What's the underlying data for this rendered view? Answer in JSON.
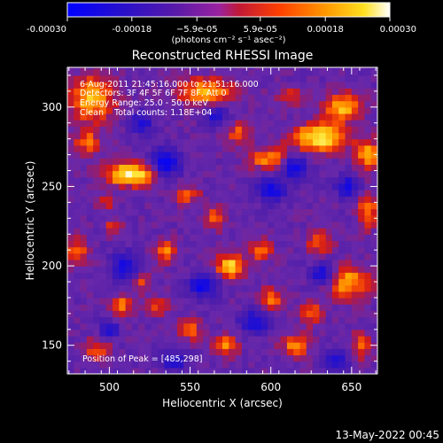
{
  "chart_data": {
    "type": "heatmap",
    "title": "Reconstructed RHESSI Image",
    "xlabel": "Heliocentric X (arcsec)",
    "ylabel": "Heliocentric Y (arcsec)",
    "xlim": [
      474,
      666
    ],
    "ylim": [
      132,
      325
    ],
    "xticks": [
      500,
      550,
      600,
      650
    ],
    "yticks": [
      150,
      200,
      250,
      300
    ],
    "colorbar": {
      "range": [
        -0.0003,
        0.0003
      ],
      "tick_values": [
        -0.0003,
        -0.00018,
        -5.9e-05,
        5.9e-05,
        0.00018,
        0.0003
      ],
      "tick_labels": [
        "-0.00030",
        "-0.00018",
        "−5.9e-05",
        "5.9e-05",
        "0.00018",
        "0.00030"
      ],
      "units_label": "(photons cm⁻² s⁻¹ asec⁻²)",
      "colormap": [
        "#0000ff",
        "#5a1aa8",
        "#7a2ab0",
        "#d01818",
        "#ff7000",
        "#ffc800",
        "#ffffff"
      ]
    },
    "annotations": [
      "6-Aug-2011 21:45:16.000 to 21:51:16.000",
      "Detectors: 3F 4F 5F 6F 7F 8F, Att 0",
      "Energy Range: 25.0 - 50.0 keV",
      "Clean    Total counts: 1.18E+04"
    ],
    "peak_label": "Position of Peak = [485,298]",
    "hotspots": [
      {
        "x": 513,
        "y": 258,
        "sx": 11,
        "sy": 5,
        "a": 1.0
      },
      {
        "x": 489,
        "y": 306,
        "sx": 10,
        "sy": 10,
        "a": 0.75
      },
      {
        "x": 486,
        "y": 278,
        "sx": 6,
        "sy": 6,
        "a": 0.5
      },
      {
        "x": 560,
        "y": 310,
        "sx": 12,
        "sy": 6,
        "a": 0.7
      },
      {
        "x": 548,
        "y": 245,
        "sx": 6,
        "sy": 4,
        "a": 0.45
      },
      {
        "x": 598,
        "y": 268,
        "sx": 8,
        "sy": 5,
        "a": 0.6
      },
      {
        "x": 630,
        "y": 281,
        "sx": 12,
        "sy": 6,
        "a": 0.95
      },
      {
        "x": 645,
        "y": 300,
        "sx": 8,
        "sy": 6,
        "a": 0.8
      },
      {
        "x": 660,
        "y": 270,
        "sx": 5,
        "sy": 7,
        "a": 0.7
      },
      {
        "x": 575,
        "y": 200,
        "sx": 6,
        "sy": 5,
        "a": 0.9
      },
      {
        "x": 535,
        "y": 210,
        "sx": 5,
        "sy": 5,
        "a": 0.55
      },
      {
        "x": 520,
        "y": 190,
        "sx": 5,
        "sy": 5,
        "a": 0.4
      },
      {
        "x": 508,
        "y": 175,
        "sx": 5,
        "sy": 5,
        "a": 0.55
      },
      {
        "x": 530,
        "y": 175,
        "sx": 5,
        "sy": 4,
        "a": 0.4
      },
      {
        "x": 594,
        "y": 210,
        "sx": 5,
        "sy": 5,
        "a": 0.5
      },
      {
        "x": 648,
        "y": 190,
        "sx": 10,
        "sy": 7,
        "a": 0.7
      },
      {
        "x": 630,
        "y": 215,
        "sx": 6,
        "sy": 5,
        "a": 0.5
      },
      {
        "x": 625,
        "y": 170,
        "sx": 5,
        "sy": 5,
        "a": 0.5
      },
      {
        "x": 600,
        "y": 180,
        "sx": 5,
        "sy": 5,
        "a": 0.55
      },
      {
        "x": 615,
        "y": 150,
        "sx": 6,
        "sy": 5,
        "a": 0.6
      },
      {
        "x": 572,
        "y": 150,
        "sx": 5,
        "sy": 5,
        "a": 0.6
      },
      {
        "x": 550,
        "y": 160,
        "sx": 5,
        "sy": 5,
        "a": 0.45
      },
      {
        "x": 492,
        "y": 148,
        "sx": 6,
        "sy": 5,
        "a": 0.45
      },
      {
        "x": 480,
        "y": 210,
        "sx": 5,
        "sy": 6,
        "a": 0.5
      },
      {
        "x": 503,
        "y": 225,
        "sx": 4,
        "sy": 4,
        "a": 0.4
      },
      {
        "x": 565,
        "y": 230,
        "sx": 5,
        "sy": 5,
        "a": 0.45
      },
      {
        "x": 660,
        "y": 235,
        "sx": 5,
        "sy": 8,
        "a": 0.55
      },
      {
        "x": 580,
        "y": 283,
        "sx": 5,
        "sy": 5,
        "a": 0.5
      },
      {
        "x": 612,
        "y": 307,
        "sx": 6,
        "sy": 4,
        "a": 0.4
      },
      {
        "x": 656,
        "y": 150,
        "sx": 5,
        "sy": 6,
        "a": 0.45
      },
      {
        "x": 498,
        "y": 240,
        "sx": 4,
        "sy": 4,
        "a": 0.35
      }
    ],
    "coldspots": [
      {
        "x": 535,
        "y": 265,
        "sx": 6,
        "sy": 6,
        "a": 0.9
      },
      {
        "x": 600,
        "y": 248,
        "sx": 6,
        "sy": 5,
        "a": 0.8
      },
      {
        "x": 615,
        "y": 262,
        "sx": 5,
        "sy": 5,
        "a": 0.8
      },
      {
        "x": 558,
        "y": 188,
        "sx": 6,
        "sy": 5,
        "a": 0.8
      },
      {
        "x": 510,
        "y": 200,
        "sx": 6,
        "sy": 6,
        "a": 0.7
      },
      {
        "x": 590,
        "y": 165,
        "sx": 6,
        "sy": 5,
        "a": 0.7
      },
      {
        "x": 632,
        "y": 195,
        "sx": 5,
        "sy": 5,
        "a": 0.75
      },
      {
        "x": 540,
        "y": 140,
        "sx": 6,
        "sy": 4,
        "a": 0.6
      },
      {
        "x": 648,
        "y": 250,
        "sx": 5,
        "sy": 5,
        "a": 0.7
      },
      {
        "x": 566,
        "y": 295,
        "sx": 5,
        "sy": 4,
        "a": 0.6
      },
      {
        "x": 520,
        "y": 290,
        "sx": 5,
        "sy": 5,
        "a": 0.6
      },
      {
        "x": 500,
        "y": 160,
        "sx": 4,
        "sy": 4,
        "a": 0.6
      },
      {
        "x": 640,
        "y": 140,
        "sx": 5,
        "sy": 5,
        "a": 0.6
      }
    ]
  },
  "footer": {
    "timestamp": "13-May-2022 00:45"
  }
}
